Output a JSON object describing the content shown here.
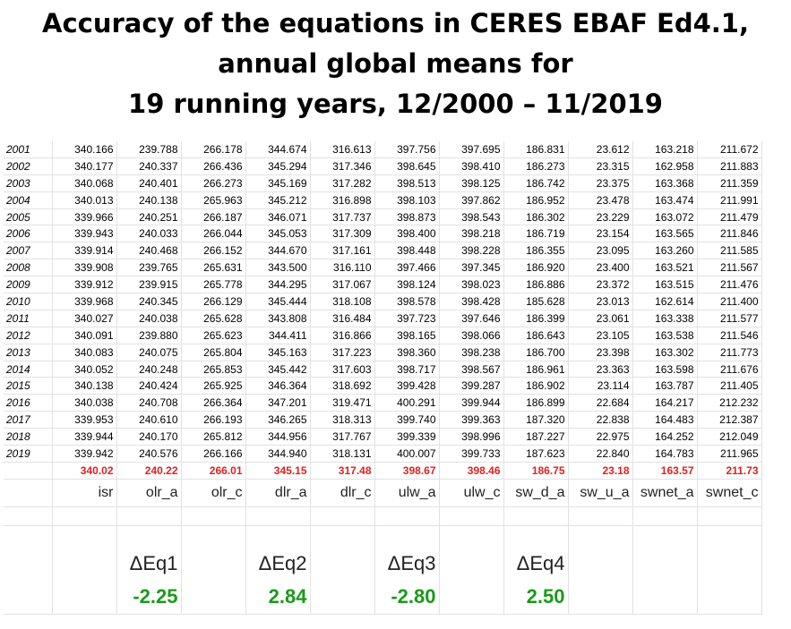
{
  "title": {
    "line1": "Accuracy of the equations in CERES EBAF Ed4.1,",
    "line2": "annual global means for",
    "line3": "19 running years, 12/2000 – 11/2019"
  },
  "columns": [
    "isr",
    "olr_a",
    "olr_c",
    "dlr_a",
    "dlr_c",
    "ulw_a",
    "ulw_c",
    "sw_d_a",
    "sw_u_a",
    "swnet_a",
    "swnet_c"
  ],
  "rows": [
    {
      "year": "2001",
      "values": [
        "340.166",
        "239.788",
        "266.178",
        "344.674",
        "316.613",
        "397.756",
        "397.695",
        "186.831",
        "23.612",
        "163.218",
        "211.672"
      ]
    },
    {
      "year": "2002",
      "values": [
        "340.177",
        "240.337",
        "266.436",
        "345.294",
        "317.346",
        "398.645",
        "398.410",
        "186.273",
        "23.315",
        "162.958",
        "211.883"
      ]
    },
    {
      "year": "2003",
      "values": [
        "340.068",
        "240.401",
        "266.273",
        "345.169",
        "317.282",
        "398.513",
        "398.125",
        "186.742",
        "23.375",
        "163.368",
        "211.359"
      ]
    },
    {
      "year": "2004",
      "values": [
        "340.013",
        "240.138",
        "265.963",
        "345.212",
        "316.898",
        "398.103",
        "397.862",
        "186.952",
        "23.478",
        "163.474",
        "211.991"
      ]
    },
    {
      "year": "2005",
      "values": [
        "339.966",
        "240.251",
        "266.187",
        "346.071",
        "317.737",
        "398.873",
        "398.543",
        "186.302",
        "23.229",
        "163.072",
        "211.479"
      ]
    },
    {
      "year": "2006",
      "values": [
        "339.943",
        "240.033",
        "266.044",
        "345.053",
        "317.309",
        "398.400",
        "398.218",
        "186.719",
        "23.154",
        "163.565",
        "211.846"
      ]
    },
    {
      "year": "2007",
      "values": [
        "339.914",
        "240.468",
        "266.152",
        "344.670",
        "317.161",
        "398.448",
        "398.228",
        "186.355",
        "23.095",
        "163.260",
        "211.585"
      ]
    },
    {
      "year": "2008",
      "values": [
        "339.908",
        "239.765",
        "265.631",
        "343.500",
        "316.110",
        "397.466",
        "397.345",
        "186.920",
        "23.400",
        "163.521",
        "211.567"
      ]
    },
    {
      "year": "2009",
      "values": [
        "339.912",
        "239.915",
        "265.778",
        "344.295",
        "317.067",
        "398.124",
        "398.023",
        "186.886",
        "23.372",
        "163.515",
        "211.476"
      ]
    },
    {
      "year": "2010",
      "values": [
        "339.968",
        "240.345",
        "266.129",
        "345.444",
        "318.108",
        "398.578",
        "398.428",
        "185.628",
        "23.013",
        "162.614",
        "211.400"
      ]
    },
    {
      "year": "2011",
      "values": [
        "340.027",
        "240.038",
        "265.628",
        "343.808",
        "316.484",
        "397.723",
        "397.646",
        "186.399",
        "23.061",
        "163.338",
        "211.577"
      ]
    },
    {
      "year": "2012",
      "values": [
        "340.091",
        "239.880",
        "265.623",
        "344.411",
        "316.866",
        "398.165",
        "398.066",
        "186.643",
        "23.105",
        "163.538",
        "211.546"
      ]
    },
    {
      "year": "2013",
      "values": [
        "340.083",
        "240.075",
        "265.804",
        "345.163",
        "317.223",
        "398.360",
        "398.238",
        "186.700",
        "23.398",
        "163.302",
        "211.773"
      ]
    },
    {
      "year": "2014",
      "values": [
        "340.052",
        "240.248",
        "265.853",
        "345.442",
        "317.603",
        "398.717",
        "398.567",
        "186.961",
        "23.363",
        "163.598",
        "211.676"
      ]
    },
    {
      "year": "2015",
      "values": [
        "340.138",
        "240.424",
        "265.925",
        "346.364",
        "318.692",
        "399.428",
        "399.287",
        "186.902",
        "23.114",
        "163.787",
        "211.405"
      ]
    },
    {
      "year": "2016",
      "values": [
        "340.038",
        "240.708",
        "266.364",
        "347.201",
        "319.471",
        "400.291",
        "399.944",
        "186.899",
        "22.684",
        "164.217",
        "212.232"
      ]
    },
    {
      "year": "2017",
      "values": [
        "339.953",
        "240.610",
        "266.193",
        "346.265",
        "318.313",
        "399.740",
        "399.363",
        "187.320",
        "22.838",
        "164.483",
        "212.387"
      ]
    },
    {
      "year": "2018",
      "values": [
        "339.944",
        "240.170",
        "265.812",
        "344.956",
        "317.767",
        "399.339",
        "398.996",
        "187.227",
        "22.975",
        "164.252",
        "212.049"
      ]
    },
    {
      "year": "2019",
      "values": [
        "339.942",
        "240.576",
        "266.166",
        "344.940",
        "318.131",
        "400.007",
        "399.733",
        "187.623",
        "22.840",
        "164.783",
        "211.965"
      ]
    }
  ],
  "averages": [
    "340.02",
    "240.22",
    "266.01",
    "345.15",
    "317.48",
    "398.67",
    "398.46",
    "186.75",
    "23.18",
    "163.57",
    "211.73"
  ],
  "deltas": [
    {
      "label": "ΔEq1",
      "value": "-2.25"
    },
    {
      "label": "ΔEq2",
      "value": "2.84"
    },
    {
      "label": "ΔEq3",
      "value": "-2.80"
    },
    {
      "label": "ΔEq4",
      "value": "2.50"
    }
  ],
  "colors": {
    "average": "#e02020",
    "delta_value": "#1a9a1a",
    "gridline": "#e2e2e2"
  }
}
